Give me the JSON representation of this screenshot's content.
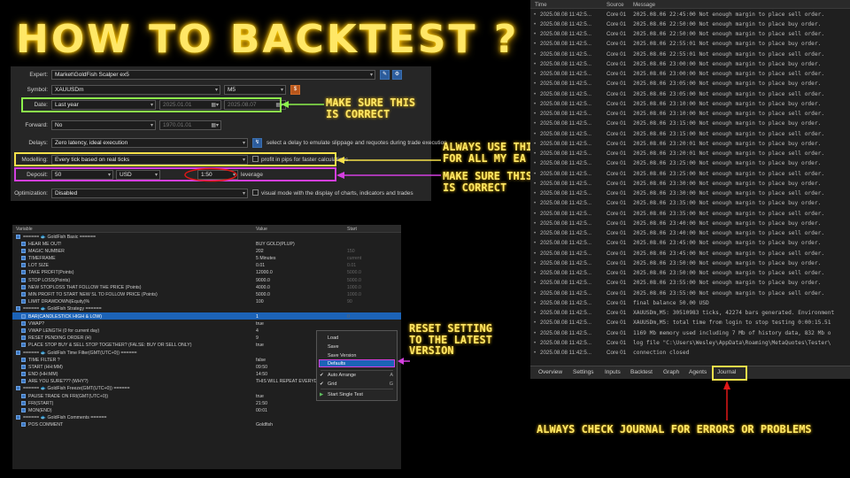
{
  "title": "HOW TO BACKTEST ?",
  "tester": {
    "expert_label": "Expert:",
    "expert_value": "Market\\GoldFish Scalper ex5",
    "symbol_label": "Symbol:",
    "symbol_value": "XAUUSDm",
    "timeframe_value": "M5",
    "date_label": "Date:",
    "date_value": "Last year",
    "date_from": "2025.01.01",
    "date_to": "2025.08.07",
    "forward_label": "Forward:",
    "forward_value": "No",
    "forward_date": "1970.01.01",
    "delays_label": "Delays:",
    "delays_value": "Zero latency, ideal execution",
    "delays_hint": "select a delay to emulate slippage and requotes during trade execution",
    "modelling_label": "Modelling:",
    "modelling_value": "Every tick based on real ticks",
    "modelling_hint": "profit in pips for faster calculations",
    "deposit_label": "Deposit:",
    "deposit_value": "50",
    "currency_value": "USD",
    "leverage_value": "1:50",
    "leverage_label": "leverage",
    "optimization_label": "Optimization:",
    "optimization_value": "Disabled",
    "optimization_hint": "visual mode with the display of charts, indicators and trades"
  },
  "annotations": {
    "date": "MAKE SURE THIS\nIS CORRECT",
    "modelling": "ALWAYS USE THIS\nFOR ALL MY EA",
    "deposit": "MAKE SURE THIS\nIS CORRECT",
    "reset": "RESET SETTING\nTO THE LATEST\nVERSION",
    "journal": "ALWAYS CHECK JOURNAL FOR ERRORS OR PROBLEMS"
  },
  "inputs": {
    "headers": [
      "Variable",
      "Value",
      "Start"
    ],
    "rows": [
      {
        "name": "====== 🐟 GoldFish Basic ======",
        "value": "",
        "start": "",
        "group": true
      },
      {
        "name": "HEAR ME OUT!",
        "value": "BUY GOLD(PLUP)",
        "start": ""
      },
      {
        "name": "MAGIC NUMBER",
        "value": "202",
        "start": "150"
      },
      {
        "name": "TIMEFRAME",
        "value": "5 Minutes",
        "start": "current"
      },
      {
        "name": "LOT SIZE",
        "value": "0.01",
        "start": "0.01"
      },
      {
        "name": "TAKE PROFIT(Points)",
        "value": "12000.0",
        "start": "5000.0"
      },
      {
        "name": "STOP LOSS(Points)",
        "value": "9000.0",
        "start": "5000.0"
      },
      {
        "name": "NEW STOPLOSS THAT FOLLOW THE PRICE (Points)",
        "value": "4000.0",
        "start": "1000.0"
      },
      {
        "name": "MIN PROFIT TO START NEW SL TO FOLLOW PRICE (Points)",
        "value": "5000.0",
        "start": "1000.0"
      },
      {
        "name": "LIMIT DRAWDOWN(Equity)%",
        "value": "100",
        "start": "90"
      },
      {
        "name": "====== 🐟 GoldFish Strategy ======",
        "value": "",
        "start": "",
        "group": true
      },
      {
        "name": "BAR(CANDLESTICK HIGH & LOW)",
        "value": "1",
        "start": "0",
        "selected": true
      },
      {
        "name": "VWAP?",
        "value": "true",
        "start": ""
      },
      {
        "name": "VWAP LENGTH (0 for current day)",
        "value": "4",
        "start": ""
      },
      {
        "name": "RESET PENDING ORDER (H)",
        "value": "9",
        "start": ""
      },
      {
        "name": "PLACE STOP BUY & SELL STOP TOGETHER? (FALSE: BUY OR SELL ONLY)",
        "value": "true",
        "start": ""
      },
      {
        "name": "====== 🐟 GoldFish Time Filter(GMT(UTC+0)) ======",
        "value": "",
        "start": "",
        "group": true
      },
      {
        "name": "TIME FILTER ?",
        "value": "false",
        "start": ""
      },
      {
        "name": "START (HH:MM)",
        "value": "09:50",
        "start": ""
      },
      {
        "name": "END (HH:MM)",
        "value": "14:50",
        "start": ""
      },
      {
        "name": "ARE YOU SURE??? (WHY?)",
        "value": "THIS WILL REPEAT EVERYDAY",
        "start": ""
      },
      {
        "name": "====== 🐟 GoldFish Freeze(GMT(UTC+0)) ======",
        "value": "",
        "start": "",
        "group": true
      },
      {
        "name": "PAUSE TRADE ON FRI(GMT(UTC+0))",
        "value": "true",
        "start": "false"
      },
      {
        "name": "FRI(START)",
        "value": "21:50",
        "start": ""
      },
      {
        "name": "MON(END)",
        "value": "00:01",
        "start": ""
      },
      {
        "name": "====== 🐟 GoldFish Comments ======",
        "value": "",
        "start": "",
        "group": true
      },
      {
        "name": "POS COMMENT",
        "value": "Goldfish",
        "start": ""
      }
    ]
  },
  "context_menu": {
    "load": "Load",
    "save": "Save",
    "save_version": "Save Version",
    "defaults": "Defaults",
    "auto_arrange": "Auto Arrange",
    "auto_arrange_key": "A",
    "grid": "Grid",
    "grid_key": "G",
    "start_single_test": "Start Single Test"
  },
  "journal": {
    "headers": [
      "Time",
      "Source",
      "Message"
    ],
    "rows": [
      [
        "2025.08.08 11:42:5...",
        "Core 01",
        "2025.08.06 22:45:00   Not enough margin to place sell order."
      ],
      [
        "2025.08.08 11:42:5...",
        "Core 01",
        "2025.08.06 22:50:00   Not enough margin to place buy order."
      ],
      [
        "2025.08.08 11:42:5...",
        "Core 01",
        "2025.08.06 22:50:00   Not enough margin to place sell order."
      ],
      [
        "2025.08.08 11:42:5...",
        "Core 01",
        "2025.08.06 22:55:01   Not enough margin to place buy order."
      ],
      [
        "2025.08.08 11:42:5...",
        "Core 01",
        "2025.08.06 22:55:01   Not enough margin to place sell order."
      ],
      [
        "2025.08.08 11:42:5...",
        "Core 01",
        "2025.08.06 23:00:00   Not enough margin to place buy order."
      ],
      [
        "2025.08.08 11:42:5...",
        "Core 01",
        "2025.08.06 23:00:00   Not enough margin to place sell order."
      ],
      [
        "2025.08.08 11:42:5...",
        "Core 01",
        "2025.08.06 23:05:00   Not enough margin to place buy order."
      ],
      [
        "2025.08.08 11:42:5...",
        "Core 01",
        "2025.08.06 23:05:00   Not enough margin to place sell order."
      ],
      [
        "2025.08.08 11:42:5...",
        "Core 01",
        "2025.08.06 23:10:00   Not enough margin to place buy order."
      ],
      [
        "2025.08.08 11:42:5...",
        "Core 01",
        "2025.08.06 23:10:00   Not enough margin to place sell order."
      ],
      [
        "2025.08.08 11:42:5...",
        "Core 01",
        "2025.08.06 23:15:00   Not enough margin to place buy order."
      ],
      [
        "2025.08.08 11:42:5...",
        "Core 01",
        "2025.08.06 23:15:00   Not enough margin to place sell order."
      ],
      [
        "2025.08.08 11:42:5...",
        "Core 01",
        "2025.08.06 23:20:01   Not enough margin to place buy order."
      ],
      [
        "2025.08.08 11:42:5...",
        "Core 01",
        "2025.08.06 23:20:01   Not enough margin to place sell order."
      ],
      [
        "2025.08.08 11:42:5...",
        "Core 01",
        "2025.08.06 23:25:00   Not enough margin to place buy order."
      ],
      [
        "2025.08.08 11:42:5...",
        "Core 01",
        "2025.08.06 23:25:00   Not enough margin to place sell order."
      ],
      [
        "2025.08.08 11:42:5...",
        "Core 01",
        "2025.08.06 23:30:00   Not enough margin to place buy order."
      ],
      [
        "2025.08.08 11:42:5...",
        "Core 01",
        "2025.08.06 23:30:00   Not enough margin to place sell order."
      ],
      [
        "2025.08.08 11:42:5...",
        "Core 01",
        "2025.08.06 23:35:00   Not enough margin to place buy order."
      ],
      [
        "2025.08.08 11:42:5...",
        "Core 01",
        "2025.08.06 23:35:00   Not enough margin to place sell order."
      ],
      [
        "2025.08.08 11:42:5...",
        "Core 01",
        "2025.08.06 23:40:00   Not enough margin to place buy order."
      ],
      [
        "2025.08.08 11:42:5...",
        "Core 01",
        "2025.08.06 23:40:00   Not enough margin to place sell order."
      ],
      [
        "2025.08.08 11:42:5...",
        "Core 01",
        "2025.08.06 23:45:00   Not enough margin to place buy order."
      ],
      [
        "2025.08.08 11:42:5...",
        "Core 01",
        "2025.08.06 23:45:00   Not enough margin to place sell order."
      ],
      [
        "2025.08.08 11:42:5...",
        "Core 01",
        "2025.08.06 23:50:00   Not enough margin to place buy order."
      ],
      [
        "2025.08.08 11:42:5...",
        "Core 01",
        "2025.08.06 23:50:00   Not enough margin to place sell order."
      ],
      [
        "2025.08.08 11:42:5...",
        "Core 01",
        "2025.08.06 23:55:00   Not enough margin to place buy order."
      ],
      [
        "2025.08.08 11:42:5...",
        "Core 01",
        "2025.08.06 23:55:00   Not enough margin to place sell order."
      ],
      [
        "2025.08.08 11:42:5...",
        "Core 01",
        "final balance 50.00 USD"
      ],
      [
        "2025.08.08 11:42:5...",
        "Core 01",
        "XAUUSDm,M5: 30510983 ticks, 42274 bars generated. Environment"
      ],
      [
        "2025.08.08 11:42:5...",
        "Core 01",
        "XAUUSDm,M5: total time from login to stop testing 0:00:15.51"
      ],
      [
        "2025.08.08 11:42:5...",
        "Core 01",
        "1169 Mb memory used including 7 Mb of history data, 832 Mb o"
      ],
      [
        "2025.08.08 11:42:5...",
        "Core 01",
        "log file \"C:\\Users\\Wesley\\AppData\\Roaming\\MetaQuotes\\Tester\\"
      ],
      [
        "2025.08.08 11:42:5...",
        "Core 01",
        "connection closed"
      ]
    ],
    "tabs": [
      "Overview",
      "Settings",
      "Inputs",
      "Backtest",
      "Graph",
      "Agents",
      "Journal"
    ]
  },
  "colors": {
    "accent_yellow": "#ffe766",
    "green": "#8cf04c",
    "yellow_box": "#f5e04a",
    "magenta": "#d43fe0",
    "red": "#e01818",
    "selection": "#1c63b7"
  }
}
